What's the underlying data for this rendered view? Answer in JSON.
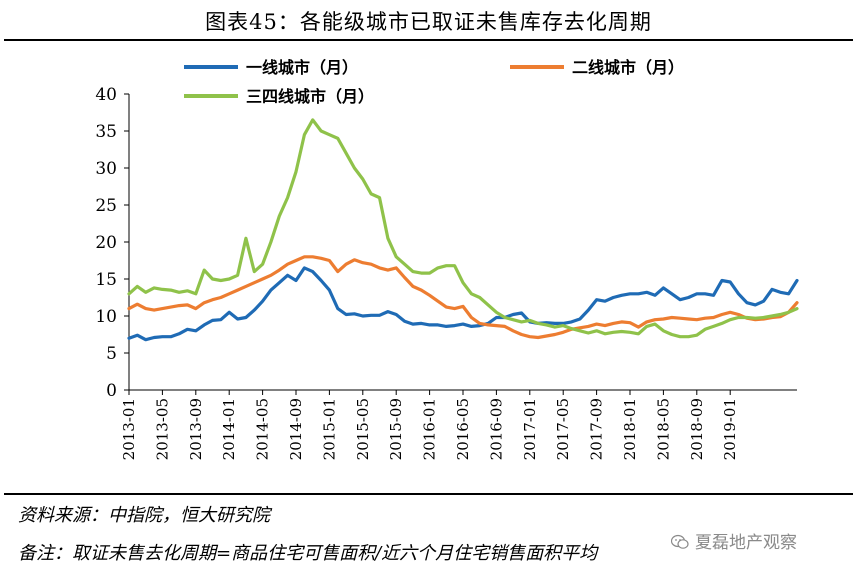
{
  "header": {
    "title": "图表45：各能级城市已取证未售库存去化周期"
  },
  "footer": {
    "source": "资料来源：中指院，恒大研究院",
    "note": "备注：取证未售去化周期=商品住宅可售面积/近六个月住宅销售面积平均",
    "watermark": "夏磊地产观察",
    "watermark_icon": "wechat-icon"
  },
  "colors": {
    "tier1": "#1f6bb5",
    "tier2": "#ed7d31",
    "tier3": "#8fc24a"
  },
  "chart_data": {
    "type": "line",
    "title": "图表45：各能级城市已取证未售库存去化周期",
    "xlabel": "",
    "ylabel": "",
    "ylim": [
      0,
      40
    ],
    "yticks": [
      "0",
      "5",
      "10",
      "15",
      "20",
      "25",
      "30",
      "35",
      "40"
    ],
    "x_tick_labels": [
      "2013-01",
      "2013-05",
      "2013-09",
      "2014-01",
      "2014-05",
      "2014-09",
      "2015-01",
      "2015-05",
      "2015-09",
      "2016-01",
      "2016-05",
      "2016-09",
      "2017-01",
      "2017-05",
      "2017-09",
      "2018-01",
      "2018-05",
      "2018-09",
      "2019-01"
    ],
    "x_start": "2013-01",
    "x_end": "2019-01",
    "grid": false,
    "legend_position": "top",
    "series": [
      {
        "name": "一线城市（月）",
        "color": "#1f6bb5",
        "values": [
          7.0,
          7.4,
          6.8,
          7.1,
          7.2,
          7.2,
          7.6,
          8.2,
          8.0,
          8.8,
          9.4,
          9.5,
          10.5,
          9.6,
          9.8,
          10.8,
          12.0,
          13.5,
          14.5,
          15.5,
          14.8,
          16.5,
          16.0,
          14.8,
          13.5,
          11.0,
          10.2,
          10.3,
          10.0,
          10.1,
          10.1,
          10.6,
          10.2,
          9.3,
          8.9,
          9.0,
          8.8,
          8.8,
          8.6,
          8.7,
          8.9,
          8.6,
          8.7,
          9.0,
          9.8,
          9.8,
          10.2,
          10.4,
          9.2,
          9.0,
          9.1,
          9.0,
          9.0,
          9.2,
          9.6,
          10.8,
          12.2,
          12.0,
          12.5,
          12.8,
          13.0,
          13.0,
          13.2,
          12.8,
          13.8,
          13.0,
          12.2,
          12.5,
          13.0,
          13.0,
          12.8,
          14.8,
          14.6,
          13.0,
          11.8,
          11.5,
          12.0,
          13.6,
          13.2,
          13.0,
          14.8
        ]
      },
      {
        "name": "二线城市（月）",
        "color": "#ed7d31",
        "values": [
          11.0,
          11.6,
          11.0,
          10.8,
          11.0,
          11.2,
          11.4,
          11.5,
          11.0,
          11.8,
          12.2,
          12.5,
          13.0,
          13.5,
          14.0,
          14.5,
          15.0,
          15.5,
          16.2,
          17.0,
          17.5,
          18.0,
          18.0,
          17.8,
          17.5,
          16.0,
          17.0,
          17.6,
          17.2,
          17.0,
          16.5,
          16.2,
          16.5,
          15.2,
          14.0,
          13.5,
          12.8,
          12.0,
          11.2,
          11.0,
          11.3,
          9.8,
          9.0,
          8.8,
          8.7,
          8.6,
          8.0,
          7.5,
          7.2,
          7.1,
          7.3,
          7.5,
          7.8,
          8.2,
          8.4,
          8.6,
          8.9,
          8.7,
          9.0,
          9.2,
          9.1,
          8.5,
          9.2,
          9.5,
          9.6,
          9.8,
          9.7,
          9.6,
          9.5,
          9.7,
          9.8,
          10.2,
          10.5,
          10.2,
          9.7,
          9.5,
          9.6,
          9.8,
          9.9,
          10.5,
          11.8
        ]
      },
      {
        "name": "三四线城市（月）",
        "color": "#8fc24a",
        "values": [
          13.0,
          14.0,
          13.2,
          13.8,
          13.6,
          13.5,
          13.2,
          13.4,
          13.0,
          16.2,
          15.0,
          14.8,
          15.0,
          15.5,
          20.5,
          16.0,
          17.0,
          20.0,
          23.5,
          26.0,
          29.5,
          34.5,
          36.5,
          35.0,
          34.5,
          34.0,
          32.0,
          30.0,
          28.5,
          26.5,
          26.0,
          20.5,
          18.0,
          17.0,
          16.0,
          15.8,
          15.8,
          16.5,
          16.8,
          16.8,
          14.5,
          13.0,
          12.5,
          11.5,
          10.5,
          9.8,
          9.5,
          9.2,
          9.4,
          9.0,
          8.8,
          8.5,
          8.7,
          8.3,
          8.0,
          7.7,
          8.0,
          7.6,
          7.8,
          7.9,
          7.8,
          7.6,
          8.6,
          8.9,
          8.0,
          7.5,
          7.2,
          7.2,
          7.4,
          8.2,
          8.6,
          9.0,
          9.5,
          9.8,
          9.8,
          9.7,
          9.8,
          10.0,
          10.2,
          10.5,
          11.0
        ]
      }
    ]
  }
}
